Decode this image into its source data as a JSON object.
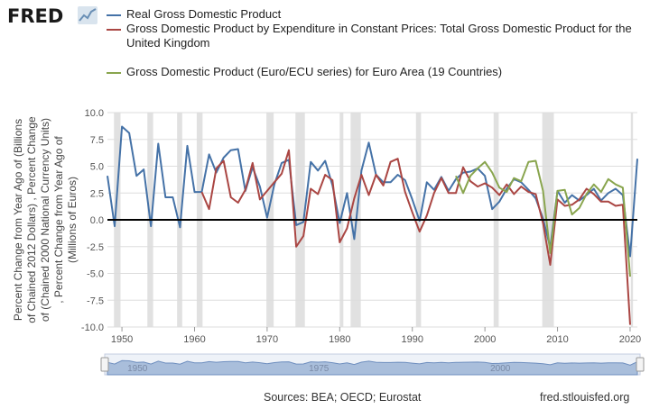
{
  "header": {
    "logo_text": "FRED",
    "logo_icon": "fred-graph-icon"
  },
  "legend": [
    {
      "label": "Real Gross Domestic Product",
      "color": "#4572a7"
    },
    {
      "label": "Gross Domestic Product by Expenditure in Constant Prices: Total Gross Domestic Product for the United Kingdom",
      "color": "#aa4643"
    },
    {
      "label": "Gross Domestic Product (Euro/ECU series) for Euro Area (19 Countries)",
      "color": "#89a54e"
    }
  ],
  "footer": {
    "sources": "Sources: BEA; OECD; Eurostat",
    "site": "fred.stlouisfed.org"
  },
  "navigator": {
    "tick_labels": [
      "1950",
      "1975",
      "2000"
    ]
  },
  "chart_data": {
    "type": "line",
    "ylabel": "Percent Change from Year Ago of (Billions of Chained 2012 Dollars) , Percent Change of (Chained 2000 National Currency Units) , Percent Change from Year Ago of (Millions of Euros)",
    "ylim": [
      -10.0,
      10.0
    ],
    "yticks": [
      "10.0",
      "7.5",
      "5.0",
      "2.5",
      "0.0",
      "-2.5",
      "-5.0",
      "-7.5",
      "-10.0"
    ],
    "xlim": [
      1948,
      2021
    ],
    "xticks": [
      "1950",
      "1960",
      "1970",
      "1980",
      "1990",
      "2000",
      "2010",
      "2020"
    ],
    "recessions": [
      [
        1948.9,
        1949.8
      ],
      [
        1953.5,
        1954.3
      ],
      [
        1957.6,
        1958.3
      ],
      [
        1960.3,
        1961.1
      ],
      [
        1969.9,
        1970.9
      ],
      [
        1973.9,
        1975.2
      ],
      [
        1980.0,
        1980.5
      ],
      [
        1981.5,
        1982.9
      ],
      [
        1990.5,
        1991.2
      ],
      [
        2001.2,
        2001.9
      ],
      [
        2007.9,
        2009.5
      ],
      [
        2020.1,
        2020.4
      ]
    ],
    "series": [
      {
        "name": "Real Gross Domestic Product",
        "color": "#4572a7",
        "x": [
          1948,
          1949,
          1950,
          1951,
          1952,
          1953,
          1954,
          1955,
          1956,
          1957,
          1958,
          1959,
          1960,
          1961,
          1962,
          1963,
          1964,
          1965,
          1966,
          1967,
          1968,
          1969,
          1970,
          1971,
          1972,
          1973,
          1974,
          1975,
          1976,
          1977,
          1978,
          1979,
          1980,
          1981,
          1982,
          1983,
          1984,
          1985,
          1986,
          1987,
          1988,
          1989,
          1990,
          1991,
          1992,
          1993,
          1994,
          1995,
          1996,
          1997,
          1998,
          1999,
          2000,
          2001,
          2002,
          2003,
          2004,
          2005,
          2006,
          2007,
          2008,
          2009,
          2010,
          2011,
          2012,
          2013,
          2014,
          2015,
          2016,
          2017,
          2018,
          2019,
          2020,
          2021
        ],
        "y": [
          4.1,
          -0.6,
          8.7,
          8.1,
          4.1,
          4.7,
          -0.6,
          7.1,
          2.1,
          2.1,
          -0.7,
          6.9,
          2.6,
          2.6,
          6.1,
          4.4,
          5.8,
          6.5,
          6.6,
          2.7,
          4.9,
          3.1,
          0.2,
          3.3,
          5.3,
          5.6,
          -0.5,
          -0.2,
          5.4,
          4.6,
          5.5,
          3.2,
          -0.3,
          2.5,
          -1.8,
          4.6,
          7.2,
          4.2,
          3.5,
          3.5,
          4.2,
          3.7,
          1.9,
          -0.1,
          3.5,
          2.8,
          4.0,
          2.7,
          3.8,
          4.4,
          4.5,
          4.8,
          4.1,
          1.0,
          1.7,
          2.9,
          3.8,
          3.5,
          2.8,
          2.0,
          0.1,
          -2.6,
          2.7,
          1.6,
          2.3,
          1.8,
          2.3,
          2.9,
          1.8,
          2.5,
          2.9,
          2.3,
          -3.4,
          5.7
        ]
      },
      {
        "name": "Gross Domestic Product by Expenditure in Constant Prices: Total Gross Domestic Product for the United Kingdom",
        "color": "#aa4643",
        "x": [
          1961,
          1962,
          1963,
          1964,
          1965,
          1966,
          1967,
          1968,
          1969,
          1970,
          1971,
          1972,
          1973,
          1974,
          1975,
          1976,
          1977,
          1978,
          1979,
          1980,
          1981,
          1982,
          1983,
          1984,
          1985,
          1986,
          1987,
          1988,
          1989,
          1990,
          1991,
          1992,
          1993,
          1994,
          1995,
          1996,
          1997,
          1998,
          1999,
          2000,
          2001,
          2002,
          2003,
          2004,
          2005,
          2006,
          2007,
          2008,
          2009,
          2010,
          2011,
          2012,
          2013,
          2014,
          2015,
          2016,
          2017,
          2018,
          2019,
          2020
        ],
        "y": [
          2.6,
          1.0,
          4.8,
          5.5,
          2.1,
          1.6,
          2.8,
          5.3,
          1.9,
          2.7,
          3.5,
          4.3,
          6.5,
          -2.5,
          -1.5,
          2.9,
          2.4,
          4.2,
          3.7,
          -2.1,
          -0.8,
          2.0,
          4.2,
          2.3,
          4.2,
          3.2,
          5.4,
          5.7,
          2.6,
          0.7,
          -1.1,
          0.4,
          2.5,
          3.9,
          2.5,
          2.5,
          4.9,
          3.6,
          3.1,
          3.4,
          3.0,
          2.3,
          3.3,
          2.4,
          3.1,
          2.6,
          2.4,
          -0.3,
          -4.2,
          1.9,
          1.3,
          1.4,
          1.9,
          2.9,
          2.4,
          1.7,
          1.7,
          1.3,
          1.4,
          -9.8
        ]
      },
      {
        "name": "Gross Domestic Product (Euro/ECU series) for Euro Area (19 Countries)",
        "color": "#89a54e",
        "x": [
          1996,
          1997,
          1998,
          1999,
          2000,
          2001,
          2002,
          2003,
          2004,
          2005,
          2006,
          2007,
          2008,
          2009,
          2010,
          2011,
          2012,
          2013,
          2014,
          2015,
          2016,
          2017,
          2018,
          2019,
          2020
        ],
        "y": [
          4.1,
          2.5,
          4.1,
          4.8,
          5.4,
          4.4,
          3.0,
          2.6,
          3.9,
          3.6,
          5.4,
          5.5,
          2.7,
          -3.1,
          2.7,
          2.8,
          0.5,
          1.1,
          2.4,
          3.3,
          2.6,
          3.8,
          3.3,
          3.0,
          -5.3
        ]
      }
    ]
  }
}
